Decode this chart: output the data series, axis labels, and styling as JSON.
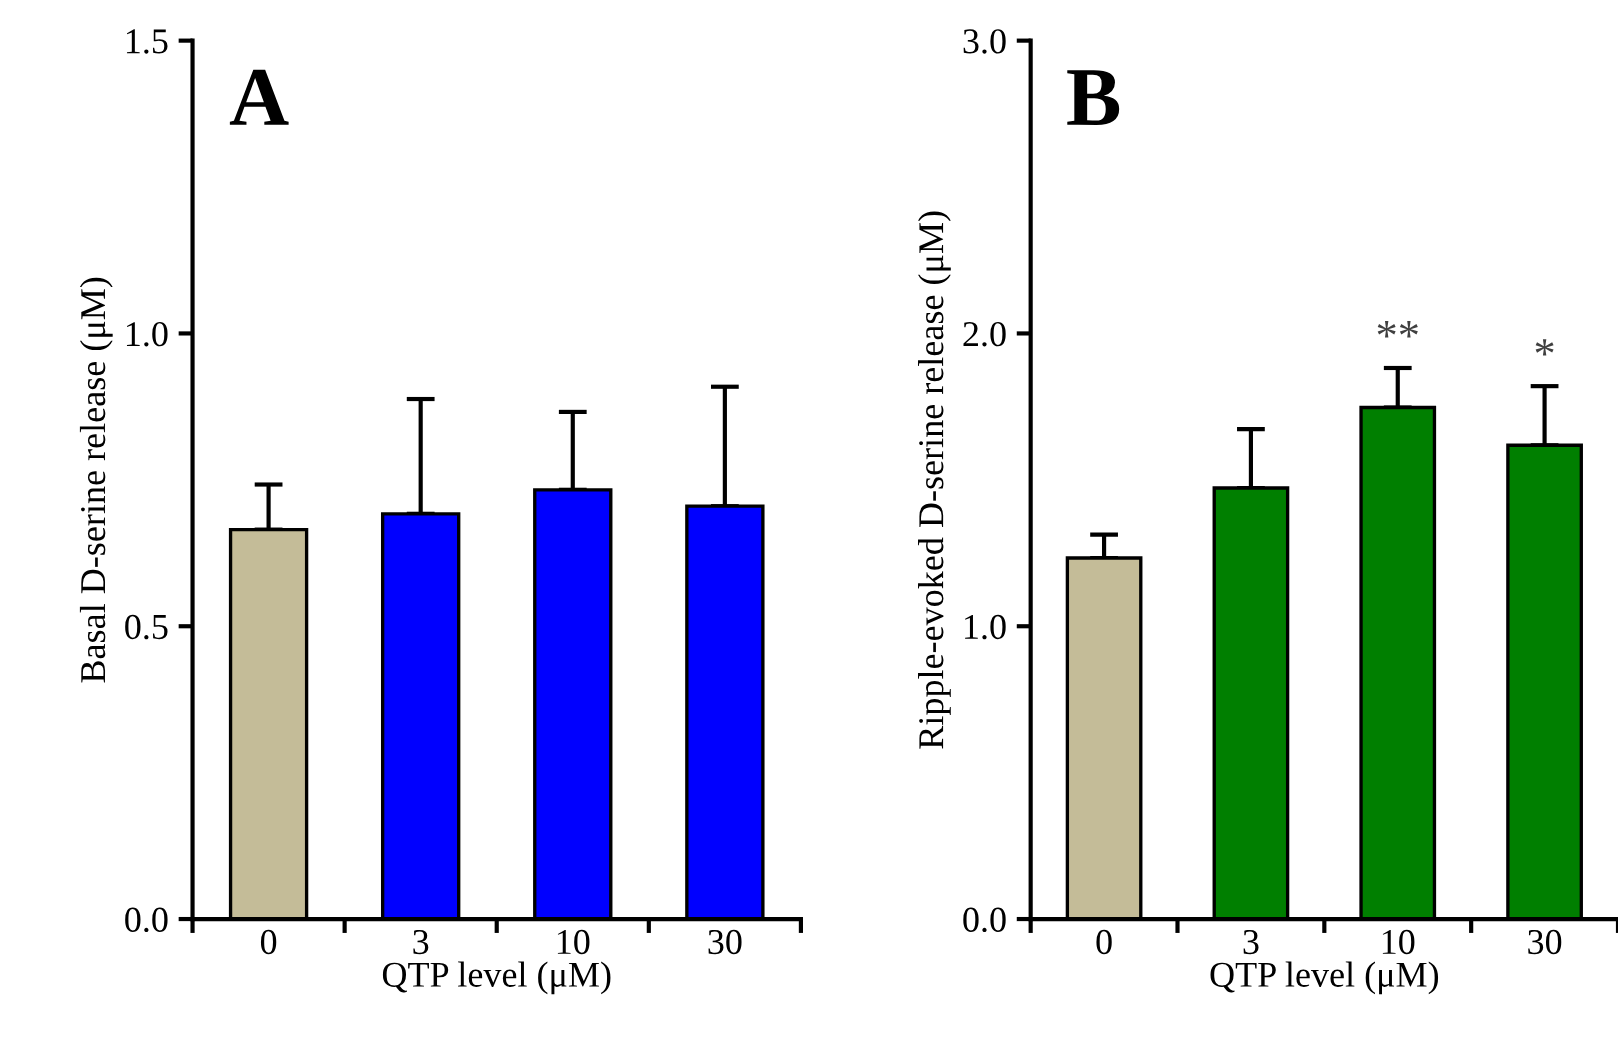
{
  "chart_data": [
    {
      "type": "bar",
      "title": "A",
      "xlabel": "QTP level (μM)",
      "ylabel": "Basal D-serine release (μM)",
      "categories": [
        "0",
        "3",
        "10",
        "30"
      ],
      "values": [
        0.665,
        0.692,
        0.733,
        0.705
      ],
      "colors": [
        "#c4bc98",
        "#0000ff",
        "#0000ff",
        "#0000ff"
      ],
      "errors": [
        [
          0.665,
          0.742
        ],
        [
          0.692,
          0.888
        ],
        [
          0.733,
          0.866
        ],
        [
          0.705,
          0.909
        ]
      ],
      "ylim": [
        0,
        1.5
      ],
      "yticks": [
        {
          "value": 0,
          "label": "0.0"
        },
        {
          "value": 0.5,
          "label": "0.5"
        },
        {
          "value": 1.0,
          "label": "1.0"
        },
        {
          "value": 1.5,
          "label": "1.5"
        }
      ],
      "grid": false,
      "legend": false
    },
    {
      "type": "bar",
      "title": "B",
      "xlabel": "QTP level (μM)",
      "ylabel": "Ripple-evoked D-serine release (μM)",
      "categories": [
        "0",
        "3",
        "10",
        "30"
      ],
      "values": [
        1.233,
        1.472,
        1.747,
        1.618
      ],
      "colors": [
        "#c4bc98",
        "#007f00",
        "#007f00",
        "#007f00"
      ],
      "errors": [
        [
          1.233,
          1.313
        ],
        [
          1.472,
          1.673
        ],
        [
          1.747,
          1.882
        ],
        [
          1.618,
          1.82
        ]
      ],
      "ylim": [
        0,
        3.0
      ],
      "yticks": [
        {
          "value": 0,
          "label": "0.0"
        },
        {
          "value": 1.0,
          "label": "1.0"
        },
        {
          "value": 2.0,
          "label": "2.0"
        },
        {
          "value": 3.0,
          "label": "3.0"
        }
      ],
      "annotations": [
        {
          "text": "**",
          "x": "10",
          "y": 1.882
        },
        {
          "text": "*",
          "x": "30",
          "y": 1.82
        }
      ],
      "grid": false,
      "legend": false
    }
  ]
}
